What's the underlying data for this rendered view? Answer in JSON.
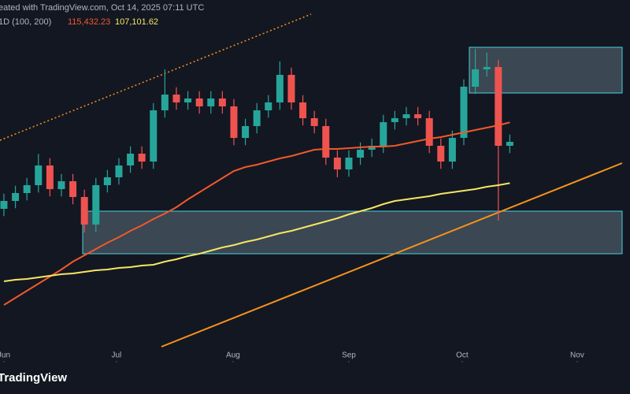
{
  "chart_data": {
    "type": "candlestick",
    "title": "eated with TradingView.com, Oct 14, 2025 07:11 UTC",
    "subtitle": "1D (100, 200)",
    "brand": "TradingView",
    "up_color": "#26a69a",
    "down_color": "#ef5350",
    "xlim": [
      -0.34,
      52.74
    ],
    "ylim": [
      82520,
      132200
    ],
    "xticks": [
      {
        "value": 0,
        "label": "Jun"
      },
      {
        "value": 9.79,
        "label": "Jul"
      },
      {
        "value": 19.93,
        "label": "Aug"
      },
      {
        "value": 30,
        "label": "Sep"
      },
      {
        "value": 39.86,
        "label": "Oct"
      },
      {
        "value": 49.86,
        "label": "Nov"
      }
    ],
    "open": [
      103580,
      104660,
      105740,
      106820,
      109520,
      106280,
      107360,
      105200,
      101420,
      106820,
      107900,
      109520,
      111140,
      110060,
      117080,
      119240,
      118160,
      118700,
      117620,
      118700,
      117620,
      113300,
      114920,
      117080,
      118160,
      121940,
      118160,
      116000,
      114920,
      110600,
      108980,
      110600,
      111680,
      112220,
      115460,
      116000,
      116540,
      116000,
      112220,
      110060,
      113300,
      120320,
      122700,
      123020,
      112220
    ],
    "high": [
      105660,
      106740,
      107820,
      111100,
      110520,
      108360,
      108360,
      106200,
      107820,
      108900,
      110520,
      112140,
      112140,
      118080,
      122700,
      120240,
      119700,
      119700,
      119700,
      119700,
      118620,
      115920,
      118080,
      119160,
      123780,
      122940,
      119160,
      117000,
      115920,
      111600,
      111600,
      112680,
      113220,
      116460,
      117000,
      117540,
      117540,
      117000,
      113220,
      114300,
      121320,
      125500,
      125000,
      124020,
      113760
    ],
    "low": [
      102580,
      103660,
      104740,
      105820,
      105280,
      105280,
      104200,
      100340,
      100420,
      105820,
      106900,
      108520,
      109060,
      109060,
      116080,
      117160,
      117160,
      116620,
      116620,
      116620,
      112300,
      112300,
      113920,
      116080,
      117160,
      117160,
      115000,
      113920,
      109600,
      107900,
      107980,
      109600,
      110680,
      111220,
      114460,
      115000,
      115000,
      111220,
      109060,
      109060,
      112300,
      119320,
      121700,
      101960,
      111220
    ],
    "close": [
      104660,
      105740,
      106820,
      109520,
      106280,
      107360,
      105200,
      101420,
      106820,
      107900,
      109520,
      111140,
      110060,
      117080,
      119240,
      118160,
      118700,
      117620,
      118700,
      117620,
      113300,
      114920,
      117080,
      118160,
      121940,
      118160,
      116000,
      114920,
      110600,
      108980,
      110600,
      111680,
      112220,
      115460,
      116000,
      116540,
      116000,
      112220,
      110060,
      113300,
      120320,
      122700,
      123020,
      112220,
      112760
    ],
    "series": [
      {
        "last_label": "115,432.23",
        "color": "#f0592b",
        "values": [
          90404,
          91376,
          92348,
          93320,
          94292,
          95264,
          96344,
          97208,
          98072,
          98936,
          99692,
          100556,
          101312,
          102176,
          102932,
          103796,
          104876,
          105848,
          106820,
          107792,
          108764,
          109304,
          109628,
          110060,
          110492,
          110816,
          111248,
          111680,
          111788,
          111788,
          111896,
          112004,
          112112,
          112112,
          112220,
          112544,
          112868,
          113192,
          113408,
          113732,
          114056,
          114380,
          114704,
          115028,
          115432.23
        ]
      },
      {
        "last_label": "107,101.62",
        "color": "#f5e663",
        "values": [
          93644,
          93860,
          93968,
          94184,
          94400,
          94616,
          94724,
          94940,
          95156,
          95264,
          95480,
          95588,
          95804,
          95912,
          96344,
          96668,
          97100,
          97424,
          97856,
          98288,
          98612,
          99044,
          99368,
          99800,
          100232,
          100556,
          100988,
          101420,
          101852,
          102284,
          102824,
          103256,
          103688,
          104228,
          104660,
          104876,
          105092,
          105308,
          105632,
          105848,
          106064,
          106280,
          106604,
          106820,
          107101.62
        ]
      }
    ]
  }
}
